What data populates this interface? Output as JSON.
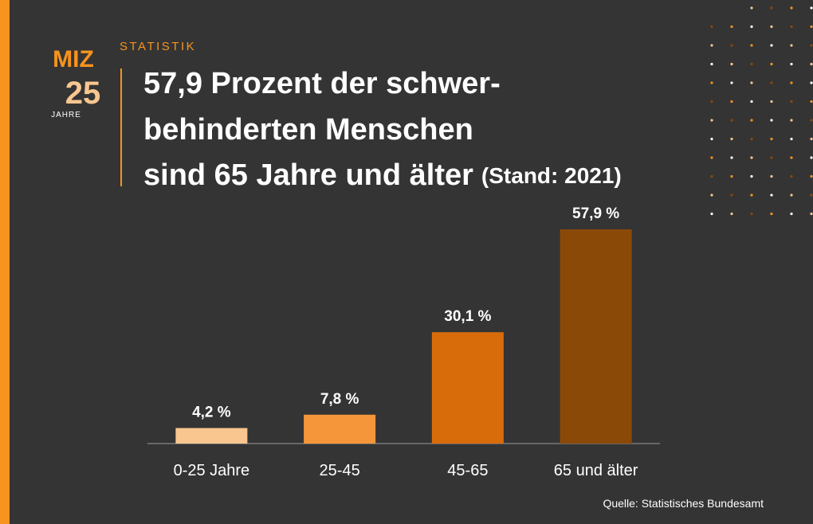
{
  "logo": {
    "mark": "MIZ",
    "number": "25",
    "caption": "JAHRE"
  },
  "chart_data": {
    "type": "bar",
    "kicker": "STATISTIK",
    "title": [
      "57,9 Prozent der schwer-",
      "behinderten Menschen",
      "sind 65 Jahre und älter"
    ],
    "subtitle": "(Stand: 2021)",
    "categories": [
      "0-25 Jahre",
      "25-45",
      "45-65",
      "65 und älter"
    ],
    "values": [
      4.2,
      7.8,
      30.1,
      57.9
    ],
    "value_labels": [
      "4,2 %",
      "7,8 %",
      "30,1 %",
      "57,9 %"
    ],
    "colors": [
      "#f9c690",
      "#f5963a",
      "#d96c0a",
      "#8b4908"
    ],
    "source": "Quelle: Statistisches Bundesamt"
  }
}
